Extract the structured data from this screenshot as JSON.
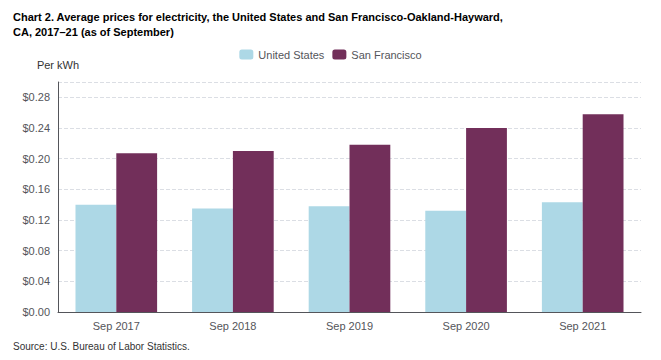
{
  "chart_data": {
    "type": "bar",
    "title": "Chart 2. Average prices for electricity, the United States and San Francisco-Oakland-Hayward,\nCA, 2017–21 (as of September)",
    "ylabel": "Per kWh",
    "annotations": [
      "Source: U.S. Bureau of Labor Statistics."
    ],
    "categories": [
      "Sep 2017",
      "Sep 2018",
      "Sep 2019",
      "Sep 2020",
      "Sep 2021"
    ],
    "series": [
      {
        "name": "United States",
        "color": "#ADD8E6",
        "values": [
          0.14,
          0.135,
          0.138,
          0.132,
          0.143
        ]
      },
      {
        "name": "San Francisco",
        "color": "#722F5A",
        "values": [
          0.207,
          0.21,
          0.218,
          0.24,
          0.258
        ]
      }
    ],
    "ylim": [
      0,
      0.3
    ],
    "yticks": [
      {
        "value": 0.0,
        "label": "$0.00"
      },
      {
        "value": 0.04,
        "label": "$0.04"
      },
      {
        "value": 0.08,
        "label": "$0.08"
      },
      {
        "value": 0.12,
        "label": "$0.12"
      },
      {
        "value": 0.16,
        "label": "$0.16"
      },
      {
        "value": 0.2,
        "label": "$0.20"
      },
      {
        "value": 0.24,
        "label": "$0.24"
      },
      {
        "value": 0.28,
        "label": "$0.28"
      }
    ],
    "grid": true,
    "legend": "top"
  }
}
